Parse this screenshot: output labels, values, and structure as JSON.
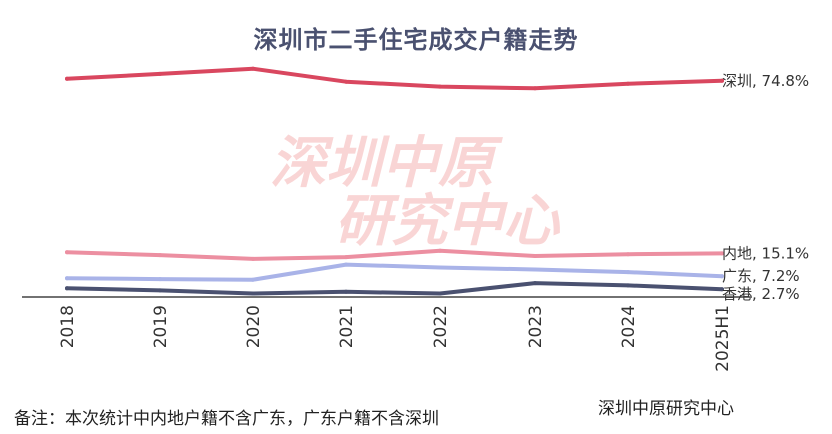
{
  "chart_data": {
    "type": "line",
    "title": "深圳市二手住宅成交户籍走势",
    "categories": [
      "2018",
      "2019",
      "2020",
      "2021",
      "2022",
      "2023",
      "2024",
      "2025H1"
    ],
    "ylim": [
      0,
      100
    ],
    "grid": false,
    "series": [
      {
        "name": "深圳",
        "color": "#d9475f",
        "label": "深圳, 74.8%",
        "values": [
          75.5,
          77.2,
          79.0,
          74.5,
          72.8,
          72.2,
          73.8,
          74.8
        ]
      },
      {
        "name": "内地",
        "color": "#ec8fa1",
        "label": "内地, 15.1%",
        "values": [
          15.5,
          14.5,
          13.2,
          13.8,
          16.0,
          14.2,
          14.8,
          15.1
        ]
      },
      {
        "name": "广东",
        "color": "#a9b3e8",
        "label": "广东, 7.2%",
        "values": [
          6.5,
          6.2,
          6.0,
          11.2,
          10.2,
          9.5,
          8.6,
          7.2
        ]
      },
      {
        "name": "香港",
        "color": "#4a5170",
        "label": "香港, 2.7%",
        "values": [
          3.0,
          2.3,
          1.2,
          1.8,
          1.2,
          4.8,
          4.0,
          2.7
        ]
      }
    ]
  },
  "watermark": {
    "line1": "深圳中原",
    "line2": "研究中心"
  },
  "footnote": "备注：本次统计中内地户籍不含广东，广东户籍不含深圳",
  "source": "深圳中原研究中心"
}
